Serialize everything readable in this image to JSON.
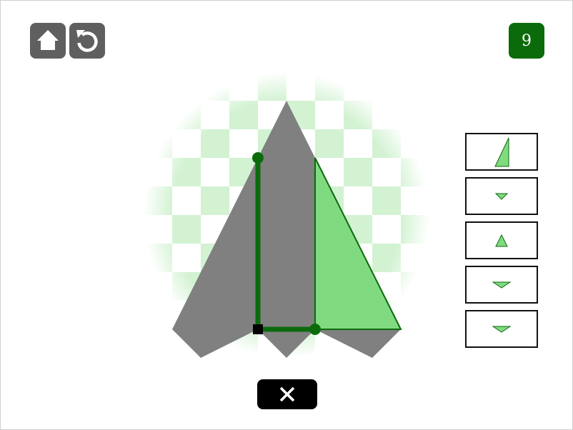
{
  "toolbar": {
    "home_icon": "home-icon",
    "restart_icon": "restart-icon"
  },
  "level": {
    "number": "9"
  },
  "colors": {
    "dark_green": "#0b6b0b",
    "light_green": "#80da80",
    "grey_shape": "#808080",
    "checker_green": "#d2f2d2",
    "button_grey": "#5f5f5f"
  },
  "piece_panel": {
    "pieces": [
      {
        "name": "right-triangle-tall",
        "icon": "triangle-icon"
      },
      {
        "name": "small-triangle-down",
        "icon": "triangle-icon"
      },
      {
        "name": "small-triangle-up",
        "icon": "triangle-icon"
      },
      {
        "name": "flat-triangle-down",
        "icon": "triangle-icon"
      },
      {
        "name": "flat-triangle-down-wide",
        "icon": "triangle-icon"
      }
    ]
  },
  "actions": {
    "close_icon": "close-icon"
  }
}
